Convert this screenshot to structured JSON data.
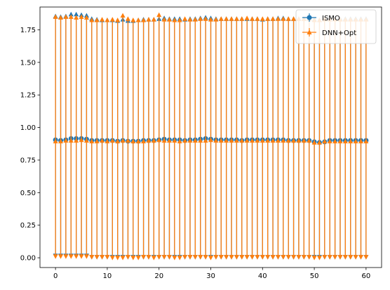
{
  "chart_data": {
    "type": "scatter",
    "title": "",
    "xlabel": "",
    "ylabel": "",
    "xlim": [
      -3,
      63
    ],
    "ylim": [
      -0.075,
      1.925
    ],
    "xticks": [
      0,
      10,
      20,
      30,
      40,
      50,
      60
    ],
    "xtick_labels": [
      "0",
      "10",
      "20",
      "30",
      "40",
      "50",
      "60"
    ],
    "yticks": [
      0.0,
      0.25,
      0.5,
      0.75,
      1.0,
      1.25,
      1.5,
      1.75
    ],
    "ytick_labels": [
      "0.00",
      "0.25",
      "0.50",
      "0.75",
      "1.00",
      "1.25",
      "1.50",
      "1.75"
    ],
    "grid": false,
    "legend_position": "top-right",
    "x": [
      0,
      1,
      2,
      3,
      4,
      5,
      6,
      7,
      8,
      9,
      10,
      11,
      12,
      13,
      14,
      15,
      16,
      17,
      18,
      19,
      20,
      21,
      22,
      23,
      24,
      25,
      26,
      27,
      28,
      29,
      30,
      31,
      32,
      33,
      34,
      35,
      36,
      37,
      38,
      39,
      40,
      41,
      42,
      43,
      44,
      45,
      46,
      47,
      48,
      49,
      50,
      51,
      52,
      53,
      54,
      55,
      56,
      57,
      58,
      59,
      60
    ],
    "series": [
      {
        "name": "ISMO",
        "color": "#1f77b4",
        "marker": "circle",
        "y": [
          0.905,
          0.9,
          0.905,
          0.915,
          0.915,
          0.915,
          0.91,
          0.9,
          0.9,
          0.9,
          0.9,
          0.9,
          0.895,
          0.9,
          0.895,
          0.895,
          0.895,
          0.9,
          0.9,
          0.9,
          0.905,
          0.91,
          0.905,
          0.905,
          0.905,
          0.9,
          0.905,
          0.905,
          0.91,
          0.915,
          0.91,
          0.905,
          0.905,
          0.905,
          0.905,
          0.905,
          0.9,
          0.905,
          0.905,
          0.905,
          0.905,
          0.905,
          0.905,
          0.905,
          0.905,
          0.9,
          0.9,
          0.9,
          0.9,
          0.9,
          0.89,
          0.885,
          0.89,
          0.9,
          0.9,
          0.9,
          0.9,
          0.9,
          0.9,
          0.9,
          0.9
        ],
        "lower": [
          0.015,
          0.015,
          0.015,
          0.015,
          0.015,
          0.015,
          0.015,
          0.005,
          0.005,
          0.005,
          0.005,
          0.005,
          0.005,
          0.005,
          0.005,
          0.005,
          0.005,
          0.005,
          0.005,
          0.005,
          0.005,
          0.005,
          0.005,
          0.005,
          0.005,
          0.005,
          0.005,
          0.005,
          0.005,
          0.005,
          0.005,
          0.005,
          0.005,
          0.005,
          0.005,
          0.005,
          0.005,
          0.005,
          0.005,
          0.005,
          0.005,
          0.005,
          0.005,
          0.005,
          0.005,
          0.005,
          0.005,
          0.005,
          0.005,
          0.005,
          0.005,
          0.005,
          0.005,
          0.005,
          0.005,
          0.005,
          0.005,
          0.005,
          0.005,
          0.005,
          0.005
        ],
        "upper": [
          1.855,
          1.85,
          1.855,
          1.87,
          1.87,
          1.865,
          1.86,
          1.835,
          1.83,
          1.825,
          1.825,
          1.825,
          1.82,
          1.83,
          1.82,
          1.82,
          1.825,
          1.83,
          1.83,
          1.83,
          1.835,
          1.84,
          1.835,
          1.835,
          1.835,
          1.83,
          1.835,
          1.835,
          1.84,
          1.845,
          1.84,
          1.835,
          1.835,
          1.835,
          1.835,
          1.835,
          1.835,
          1.835,
          1.835,
          1.835,
          1.83,
          1.835,
          1.835,
          1.84,
          1.84,
          1.835,
          1.835,
          1.835,
          1.835,
          1.835,
          1.83,
          1.825,
          1.83,
          1.835,
          1.835,
          1.835,
          1.835,
          1.835,
          1.835,
          1.835,
          1.835
        ]
      },
      {
        "name": "DNN+Opt",
        "color": "#ff7f0e",
        "marker": "triangle",
        "y": [
          0.895,
          0.895,
          0.9,
          0.9,
          0.9,
          0.905,
          0.9,
          0.895,
          0.895,
          0.9,
          0.895,
          0.9,
          0.895,
          0.9,
          0.9,
          0.895,
          0.895,
          0.895,
          0.9,
          0.9,
          0.905,
          0.9,
          0.9,
          0.9,
          0.895,
          0.9,
          0.9,
          0.9,
          0.9,
          0.9,
          0.905,
          0.9,
          0.9,
          0.9,
          0.9,
          0.9,
          0.9,
          0.9,
          0.9,
          0.9,
          0.9,
          0.9,
          0.9,
          0.9,
          0.9,
          0.9,
          0.9,
          0.9,
          0.9,
          0.9,
          0.885,
          0.885,
          0.895,
          0.895,
          0.895,
          0.895,
          0.895,
          0.895,
          0.895,
          0.895,
          0.895
        ],
        "lower": [
          0.01,
          0.01,
          0.01,
          0.01,
          0.01,
          0.01,
          0.01,
          0.005,
          0.005,
          0.005,
          0.005,
          0.0,
          0.0,
          0.0,
          0.005,
          0.0,
          0.0,
          0.005,
          0.005,
          0.0,
          0.005,
          0.005,
          0.005,
          0.0,
          0.0,
          0.005,
          0.005,
          0.005,
          0.005,
          0.005,
          0.0,
          0.005,
          0.005,
          0.005,
          0.005,
          0.005,
          0.005,
          0.005,
          0.005,
          0.005,
          0.005,
          0.005,
          0.005,
          0.005,
          0.005,
          0.005,
          0.005,
          0.005,
          0.005,
          0.005,
          0.0,
          0.0,
          0.005,
          0.005,
          0.005,
          0.005,
          0.005,
          0.005,
          0.005,
          0.005,
          0.005
        ],
        "upper": [
          1.85,
          1.845,
          1.85,
          1.85,
          1.845,
          1.85,
          1.845,
          1.825,
          1.825,
          1.83,
          1.825,
          1.83,
          1.825,
          1.86,
          1.835,
          1.825,
          1.825,
          1.825,
          1.83,
          1.83,
          1.865,
          1.83,
          1.83,
          1.825,
          1.825,
          1.835,
          1.83,
          1.83,
          1.835,
          1.835,
          1.83,
          1.83,
          1.835,
          1.835,
          1.835,
          1.835,
          1.835,
          1.84,
          1.835,
          1.835,
          1.835,
          1.835,
          1.835,
          1.835,
          1.835,
          1.835,
          1.835,
          1.835,
          1.835,
          1.835,
          1.825,
          1.825,
          1.83,
          1.83,
          1.83,
          1.83,
          1.83,
          1.83,
          1.83,
          1.83,
          1.83
        ]
      }
    ]
  }
}
